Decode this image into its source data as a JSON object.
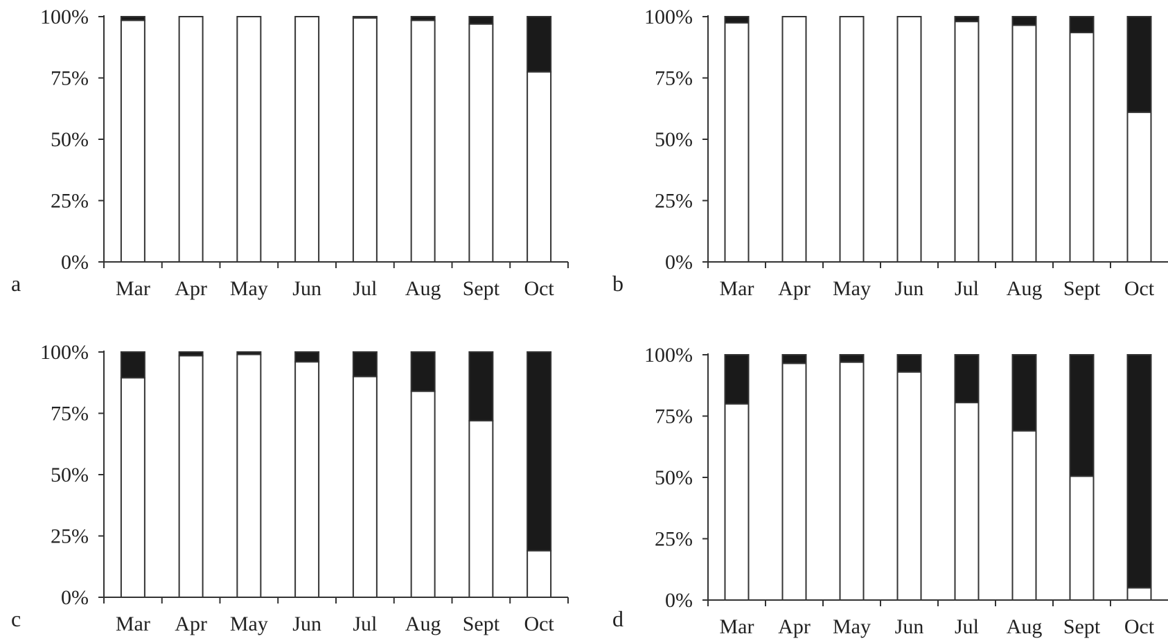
{
  "chart_data": [
    {
      "type": "bar",
      "stacked": true,
      "panel_label": "a",
      "categories": [
        "Mar",
        "Apr",
        "May",
        "Jun",
        "Jul",
        "Aug",
        "Sept",
        "Oct"
      ],
      "series": [
        {
          "color": "#ffffff",
          "values": [
            98.5,
            100,
            100,
            100,
            99.5,
            98.5,
            97,
            77.5
          ]
        },
        {
          "color": "#1a1a1a",
          "values": [
            1.5,
            0,
            0,
            0,
            0.5,
            1.5,
            3,
            22.5
          ]
        }
      ],
      "ylim": [
        0,
        100
      ],
      "yticks": [
        "0%",
        "25%",
        "50%",
        "75%",
        "100%"
      ],
      "grid": false
    },
    {
      "type": "bar",
      "stacked": true,
      "panel_label": "b",
      "categories": [
        "Mar",
        "Apr",
        "May",
        "Jun",
        "Jul",
        "Aug",
        "Sept",
        "Oct"
      ],
      "series": [
        {
          "color": "#ffffff",
          "values": [
            97.5,
            100,
            100,
            100,
            98,
            96.5,
            93.5,
            61
          ]
        },
        {
          "color": "#1a1a1a",
          "values": [
            2.5,
            0,
            0,
            0,
            2,
            3.5,
            6.5,
            39
          ]
        }
      ],
      "ylim": [
        0,
        100
      ],
      "yticks": [
        "0%",
        "25%",
        "50%",
        "75%",
        "100%"
      ],
      "grid": false
    },
    {
      "type": "bar",
      "stacked": true,
      "panel_label": "c",
      "categories": [
        "Mar",
        "Apr",
        "May",
        "Jun",
        "Jul",
        "Aug",
        "Sept",
        "Oct"
      ],
      "series": [
        {
          "color": "#ffffff",
          "values": [
            89.5,
            98.5,
            99,
            96,
            90,
            84,
            72,
            19
          ]
        },
        {
          "color": "#1a1a1a",
          "values": [
            10.5,
            1.5,
            1,
            4,
            10,
            16,
            28,
            81
          ]
        }
      ],
      "ylim": [
        0,
        100
      ],
      "yticks": [
        "0%",
        "25%",
        "50%",
        "75%",
        "100%"
      ],
      "grid": false
    },
    {
      "type": "bar",
      "stacked": true,
      "panel_label": "d",
      "categories": [
        "Mar",
        "Apr",
        "May",
        "Jun",
        "Jul",
        "Aug",
        "Sept",
        "Oct"
      ],
      "series": [
        {
          "color": "#ffffff",
          "values": [
            80,
            96.5,
            97,
            93,
            80.5,
            69,
            50.5,
            5
          ]
        },
        {
          "color": "#1a1a1a",
          "values": [
            20,
            3.5,
            3,
            7,
            19.5,
            31,
            49.5,
            95
          ]
        }
      ],
      "ylim": [
        0,
        100
      ],
      "yticks": [
        "0%",
        "25%",
        "50%",
        "75%",
        "100%"
      ],
      "grid": false
    }
  ]
}
